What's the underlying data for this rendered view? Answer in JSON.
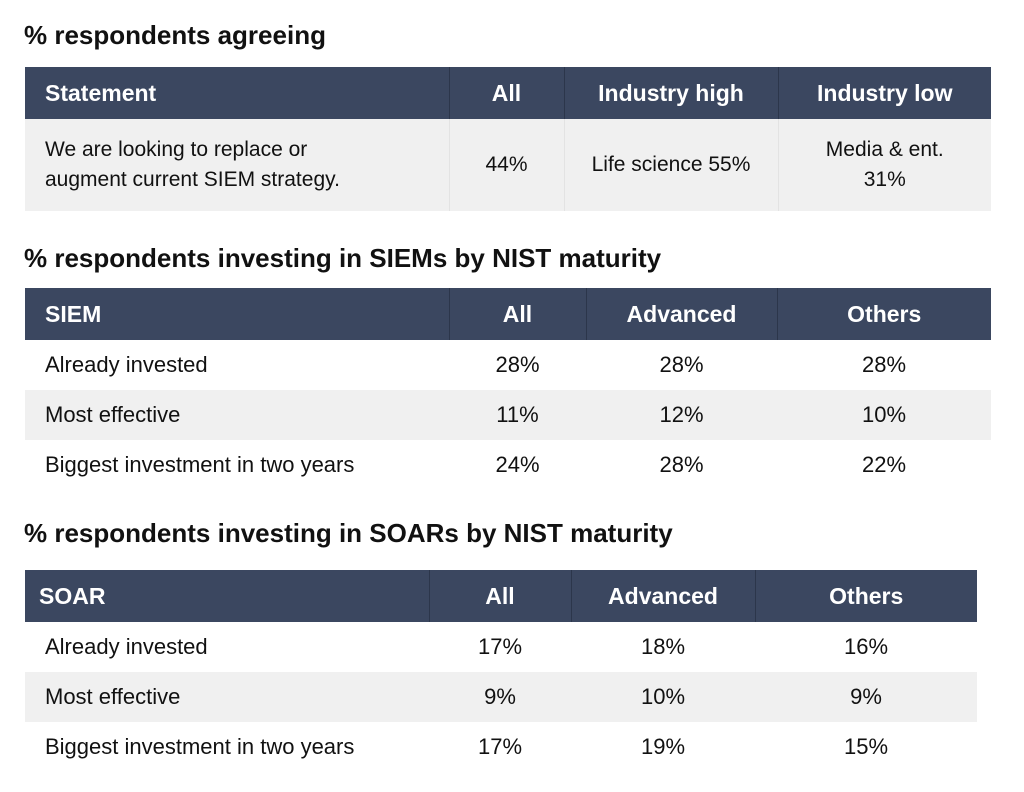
{
  "section1": {
    "title": "% respondents agreeing",
    "headers": [
      "Statement",
      "All",
      "Industry high",
      "Industry low"
    ],
    "row": {
      "statement_line1": "We are looking to replace or",
      "statement_line2": "augment current SIEM strategy.",
      "all": "44%",
      "industry_high": "Life science 55%",
      "industry_low_line1": "Media & ent.",
      "industry_low_line2": "31%"
    }
  },
  "section2": {
    "title": "% respondents investing in SIEMs by NIST maturity",
    "headers": [
      "SIEM",
      "All",
      "Advanced",
      "Others"
    ],
    "rows": [
      {
        "label": "Already invested",
        "all": "28%",
        "advanced": "28%",
        "others": "28%"
      },
      {
        "label": "Most effective",
        "all": "11%",
        "advanced": "12%",
        "others": "10%"
      },
      {
        "label": "Biggest investment in two years",
        "all": "24%",
        "advanced": "28%",
        "others": "22%"
      }
    ]
  },
  "section3": {
    "title": "% respondents investing in SOARs by NIST maturity",
    "headers": [
      "SOAR",
      "All",
      "Advanced",
      "Others"
    ],
    "rows": [
      {
        "label": "Already invested",
        "all": "17%",
        "advanced": "18%",
        "others": "16%"
      },
      {
        "label": "Most effective",
        "all": "9%",
        "advanced": "10%",
        "others": "9%"
      },
      {
        "label": "Biggest investment in two years",
        "all": "17%",
        "advanced": "19%",
        "others": "15%"
      }
    ]
  },
  "colors": {
    "header_bg": "#3b4760",
    "header_text": "#ffffff",
    "row_shade": "#f0f0f0"
  }
}
